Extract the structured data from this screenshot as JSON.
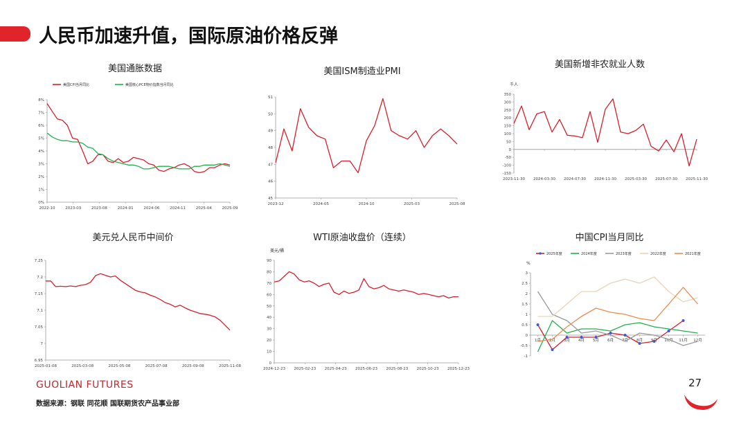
{
  "page": {
    "title": "人民币加速升值，国际原油价格反弹",
    "brand": "GUOLIAN FUTURES",
    "source": "数据来源：钢联  同花顺  国联期货农产品事业部",
    "page_number": "27"
  },
  "colors": {
    "red": "#d81e2a",
    "green": "#21b04b",
    "gray": "#9a9a9a",
    "beige": "#e8d5b7",
    "orange": "#f08a4b",
    "blue": "#3a5bd9",
    "brand": "#e0242a"
  },
  "chart_data": [
    {
      "id": "us-inflation",
      "type": "line",
      "title": "美国通胀数据",
      "ylim": [
        0,
        8
      ],
      "yticks": [
        "0%",
        "1%",
        "2%",
        "3%",
        "4%",
        "5%",
        "6%",
        "7%",
        "8%"
      ],
      "xticks": [
        "2022-10",
        "2023-03",
        "2023-08",
        "2024-01",
        "2024-06",
        "2024-11",
        "2025-04",
        "2025-09"
      ],
      "series": [
        {
          "name": "美国CPI当月同比",
          "color": "#d81e2a",
          "values": [
            7.7,
            7.1,
            6.5,
            6.4,
            6.0,
            5.0,
            4.9,
            4.0,
            3.0,
            3.2,
            3.7,
            3.7,
            3.2,
            3.1,
            3.4,
            3.1,
            3.2,
            3.5,
            3.4,
            3.3,
            3.0,
            2.9,
            2.5,
            2.4,
            2.6,
            2.7,
            2.9,
            3.0,
            2.8,
            2.4,
            2.3,
            2.4,
            2.7,
            2.7,
            2.9,
            3.0,
            2.9
          ]
        },
        {
          "name": "美国核心PCE物价指数当月同比",
          "color": "#21b04b",
          "values": [
            5.4,
            5.1,
            4.9,
            4.8,
            4.8,
            4.7,
            4.7,
            4.6,
            4.3,
            4.2,
            3.8,
            3.7,
            3.4,
            3.2,
            3.1,
            3.0,
            2.9,
            2.9,
            2.8,
            2.6,
            2.6,
            2.7,
            2.8,
            2.8,
            2.8,
            2.7,
            2.6,
            2.6,
            2.6,
            2.8,
            2.8,
            2.9,
            2.9,
            2.9,
            3.0,
            2.9,
            2.8
          ]
        }
      ]
    },
    {
      "id": "us-ism",
      "type": "line",
      "title": "美国ISM制造业PMI",
      "ylim": [
        45,
        51
      ],
      "yticks": [
        "45",
        "46",
        "47",
        "48",
        "49",
        "50",
        "51"
      ],
      "xticks": [
        "2023-12",
        "2024-05",
        "2024-10",
        "2025-03",
        "2025-08"
      ],
      "series": [
        {
          "name": "",
          "color": "#d81e2a",
          "values": [
            47.1,
            49.1,
            47.8,
            50.3,
            49.2,
            48.7,
            48.5,
            46.8,
            47.2,
            47.2,
            46.5,
            48.4,
            49.3,
            50.9,
            49.0,
            48.7,
            48.5,
            49.0,
            48.0,
            48.7,
            49.1,
            48.7,
            48.2
          ]
        }
      ]
    },
    {
      "id": "us-nfp",
      "type": "line",
      "title": "美国新增非农就业人数",
      "ylabel": "千人",
      "ylim": [
        -150,
        350
      ],
      "yticks": [
        "-150",
        "-100",
        "-50",
        "0",
        "50",
        "100",
        "150",
        "200",
        "250",
        "300",
        "350"
      ],
      "xticks": [
        "2023-11-30",
        "2024-03-30",
        "2024-07-30",
        "2024-11-30",
        "2025-03-30",
        "2025-07-30",
        "2025-11-30"
      ],
      "series": [
        {
          "name": "",
          "color": "#d81e2a",
          "values": [
            165,
            275,
            125,
            225,
            240,
            110,
            190,
            90,
            85,
            75,
            240,
            45,
            255,
            320,
            110,
            100,
            120,
            160,
            20,
            -10,
            60,
            -15,
            100,
            -105,
            65
          ]
        }
      ]
    },
    {
      "id": "usd-cny",
      "type": "line",
      "title": "美元兑人民币中间价",
      "ylim": [
        6.95,
        7.25
      ],
      "yticks": [
        "6.95",
        "7",
        "7.05",
        "7.1",
        "7.15",
        "7.2",
        "7.25"
      ],
      "xticks": [
        "2025-01-08",
        "2025-03-08",
        "2025-05-08",
        "2025-07-08",
        "2025-09-08",
        "2025-11-08"
      ],
      "series": [
        {
          "name": "",
          "color": "#d81e2a",
          "values": [
            7.188,
            7.188,
            7.171,
            7.172,
            7.171,
            7.173,
            7.171,
            7.175,
            7.177,
            7.184,
            7.204,
            7.21,
            7.205,
            7.2,
            7.203,
            7.19,
            7.18,
            7.17,
            7.16,
            7.155,
            7.152,
            7.145,
            7.14,
            7.132,
            7.123,
            7.118,
            7.11,
            7.115,
            7.107,
            7.1,
            7.095,
            7.09,
            7.088,
            7.085,
            7.08,
            7.07,
            7.055,
            7.04
          ]
        }
      ]
    },
    {
      "id": "wti",
      "type": "line",
      "title": "WTI原油收盘价（连续）",
      "ylabel": "美元/桶",
      "ylim": [
        0,
        90
      ],
      "yticks": [
        "0",
        "10",
        "20",
        "30",
        "40",
        "50",
        "60",
        "70",
        "80",
        "90"
      ],
      "xticks": [
        "2024-12-23",
        "2025-02-23",
        "2025-04-23",
        "2025-06-23",
        "2025-08-23",
        "2025-10-23",
        "2025-12-23"
      ],
      "series": [
        {
          "name": "",
          "color": "#d81e2a",
          "values": [
            71,
            72,
            76,
            80,
            78,
            73,
            71,
            72,
            70,
            67,
            69,
            70,
            62,
            60,
            63,
            61,
            62,
            64,
            74,
            67,
            65,
            66,
            68,
            65,
            64,
            63,
            64,
            63,
            62,
            60,
            61,
            60,
            59,
            58,
            59,
            57,
            58,
            58
          ]
        }
      ]
    },
    {
      "id": "china-cpi",
      "type": "line",
      "title": "中国CPI当月同比",
      "ylabel": "%",
      "ylim": [
        -1,
        3
      ],
      "yticks": [
        "-1",
        "-0.5",
        "0",
        "0.5",
        "1",
        "1.5",
        "2",
        "2.5",
        "3"
      ],
      "categories": [
        "1月",
        "2月",
        "3月",
        "4月",
        "5月",
        "6月",
        "7月",
        "8月",
        "9月",
        "10月",
        "11月",
        "12月"
      ],
      "series": [
        {
          "name": "2025年度",
          "color": "#d81e2a",
          "marker": "#3a5bd9",
          "values": [
            0.5,
            -0.7,
            -0.1,
            -0.1,
            -0.1,
            0.1,
            0.0,
            -0.4,
            -0.3,
            0.2,
            0.7,
            null
          ]
        },
        {
          "name": "2024年度",
          "color": "#21b04b",
          "values": [
            -0.8,
            0.7,
            0.1,
            0.3,
            0.3,
            0.2,
            0.5,
            0.6,
            0.4,
            0.3,
            0.2,
            0.1
          ]
        },
        {
          "name": "2023年度",
          "color": "#9a9a9a",
          "values": [
            2.1,
            1.0,
            0.7,
            0.1,
            0.2,
            0.0,
            -0.3,
            0.1,
            0.0,
            -0.2,
            -0.5,
            -0.3
          ]
        },
        {
          "name": "2022年度",
          "color": "#e8d5b7",
          "values": [
            0.9,
            0.9,
            1.5,
            2.1,
            2.1,
            2.5,
            2.7,
            2.5,
            2.8,
            2.1,
            1.6,
            1.8
          ]
        },
        {
          "name": "2021年度",
          "color": "#f08a4b",
          "values": [
            -0.3,
            -0.2,
            0.4,
            0.9,
            1.3,
            1.1,
            1.0,
            0.8,
            0.7,
            1.5,
            2.3,
            1.5
          ]
        }
      ]
    }
  ]
}
